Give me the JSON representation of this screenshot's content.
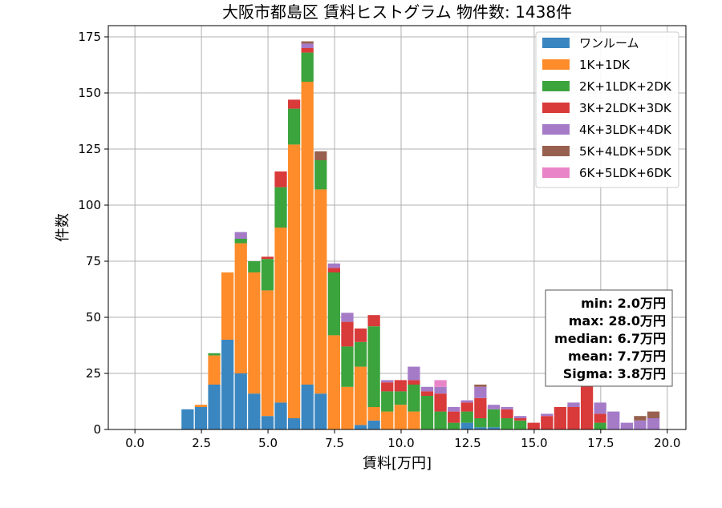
{
  "chart_data": {
    "type": "bar",
    "stacked": true,
    "title": "大阪市都島区 賃料ヒストグラム  物件数: 1438件",
    "xlabel": "賃料[万円]",
    "ylabel": "件数",
    "xlim": [
      -1.0,
      20.7
    ],
    "ylim": [
      0,
      180
    ],
    "xticks": [
      0.0,
      2.5,
      5.0,
      7.5,
      10.0,
      12.5,
      15.0,
      17.5,
      20.0
    ],
    "xtick_labels": [
      "0.0",
      "2.5",
      "5.0",
      "7.5",
      "10.0",
      "12.5",
      "15.0",
      "17.5",
      "20.0"
    ],
    "yticks": [
      0,
      25,
      50,
      75,
      100,
      125,
      150,
      175
    ],
    "ytick_labels": [
      "0",
      "25",
      "50",
      "75",
      "100",
      "125",
      "150",
      "175"
    ],
    "grid": true,
    "legend_position": "top-right",
    "bin_width": 0.5,
    "bins": [
      2.0,
      2.5,
      3.0,
      3.5,
      4.0,
      4.5,
      5.0,
      5.5,
      6.0,
      6.5,
      7.0,
      7.5,
      8.0,
      8.5,
      9.0,
      9.5,
      10.0,
      10.5,
      11.0,
      11.5,
      12.0,
      12.5,
      13.0,
      13.5,
      14.0,
      14.5,
      15.0,
      15.5,
      16.0,
      16.5,
      17.0,
      17.5,
      18.0,
      18.5,
      19.0,
      19.5
    ],
    "series": [
      {
        "name": "ワンルーム",
        "color": "#3a86c0",
        "values": [
          9,
          10,
          20,
          40,
          25,
          16,
          6,
          12,
          5,
          20,
          16,
          0,
          0,
          2,
          4,
          0,
          0,
          0,
          0,
          0,
          0,
          3,
          1,
          1,
          0,
          0,
          0,
          0,
          0,
          0,
          0,
          0,
          0,
          0,
          0,
          0
        ]
      },
      {
        "name": "1K+1DK",
        "color": "#ff8c2a",
        "values": [
          0,
          1,
          13,
          30,
          58,
          54,
          56,
          78,
          122,
          135,
          91,
          42,
          19,
          26,
          6,
          8,
          11,
          8,
          0,
          0,
          0,
          0,
          0,
          0,
          0,
          0,
          0,
          0,
          0,
          0,
          0,
          0,
          0,
          0,
          0,
          0
        ]
      },
      {
        "name": "2K+1LDK+2DK",
        "color": "#3ca43c",
        "values": [
          0,
          0,
          1,
          0,
          2,
          5,
          14,
          18,
          16,
          13,
          13,
          28,
          18,
          11,
          36,
          9,
          6,
          12,
          15,
          8,
          3,
          5,
          4,
          8,
          5,
          4,
          0,
          0,
          0,
          0,
          0,
          3,
          0,
          0,
          0,
          0
        ]
      },
      {
        "name": "3K+2LDK+3DK",
        "color": "#d93a3a",
        "values": [
          0,
          0,
          0,
          0,
          0,
          0,
          1,
          7,
          4,
          2,
          0,
          2,
          11,
          6,
          5,
          4,
          5,
          2,
          2,
          8,
          5,
          4,
          9,
          0,
          4,
          1,
          3,
          6,
          10,
          10,
          20,
          4,
          0,
          0,
          0,
          0
        ]
      },
      {
        "name": "4K+3LDK+4DK",
        "color": "#a57bc8",
        "values": [
          0,
          0,
          0,
          0,
          3,
          0,
          0,
          0,
          0,
          2,
          0,
          2,
          4,
          0,
          0,
          1,
          0,
          6,
          2,
          3,
          2,
          1,
          5,
          2,
          1,
          1,
          0,
          1,
          0,
          2,
          1,
          5,
          8,
          3,
          4,
          5
        ]
      },
      {
        "name": "5K+4LDK+5DK",
        "color": "#97604f",
        "values": [
          0,
          0,
          0,
          0,
          0,
          0,
          0,
          0,
          0,
          1,
          4,
          0,
          0,
          0,
          0,
          0,
          0,
          0,
          0,
          0,
          0,
          0,
          1,
          0,
          0,
          0,
          0,
          0,
          0,
          0,
          0,
          0,
          0,
          0,
          2,
          3
        ]
      },
      {
        "name": "6K+5LDK+6DK",
        "color": "#e984c8",
        "values": [
          0,
          0,
          0,
          0,
          0,
          0,
          0,
          0,
          0,
          0,
          0,
          0,
          0,
          0,
          0,
          0,
          0,
          0,
          0,
          3,
          0,
          0,
          0,
          0,
          0,
          0,
          0,
          0,
          0,
          0,
          0,
          0,
          0,
          0,
          0,
          0
        ]
      }
    ],
    "stats_lines": [
      "min: 2.0万円",
      "max: 28.0万円",
      "median: 6.7万円",
      "mean: 7.7万円",
      "Sigma: 3.8万円"
    ]
  }
}
